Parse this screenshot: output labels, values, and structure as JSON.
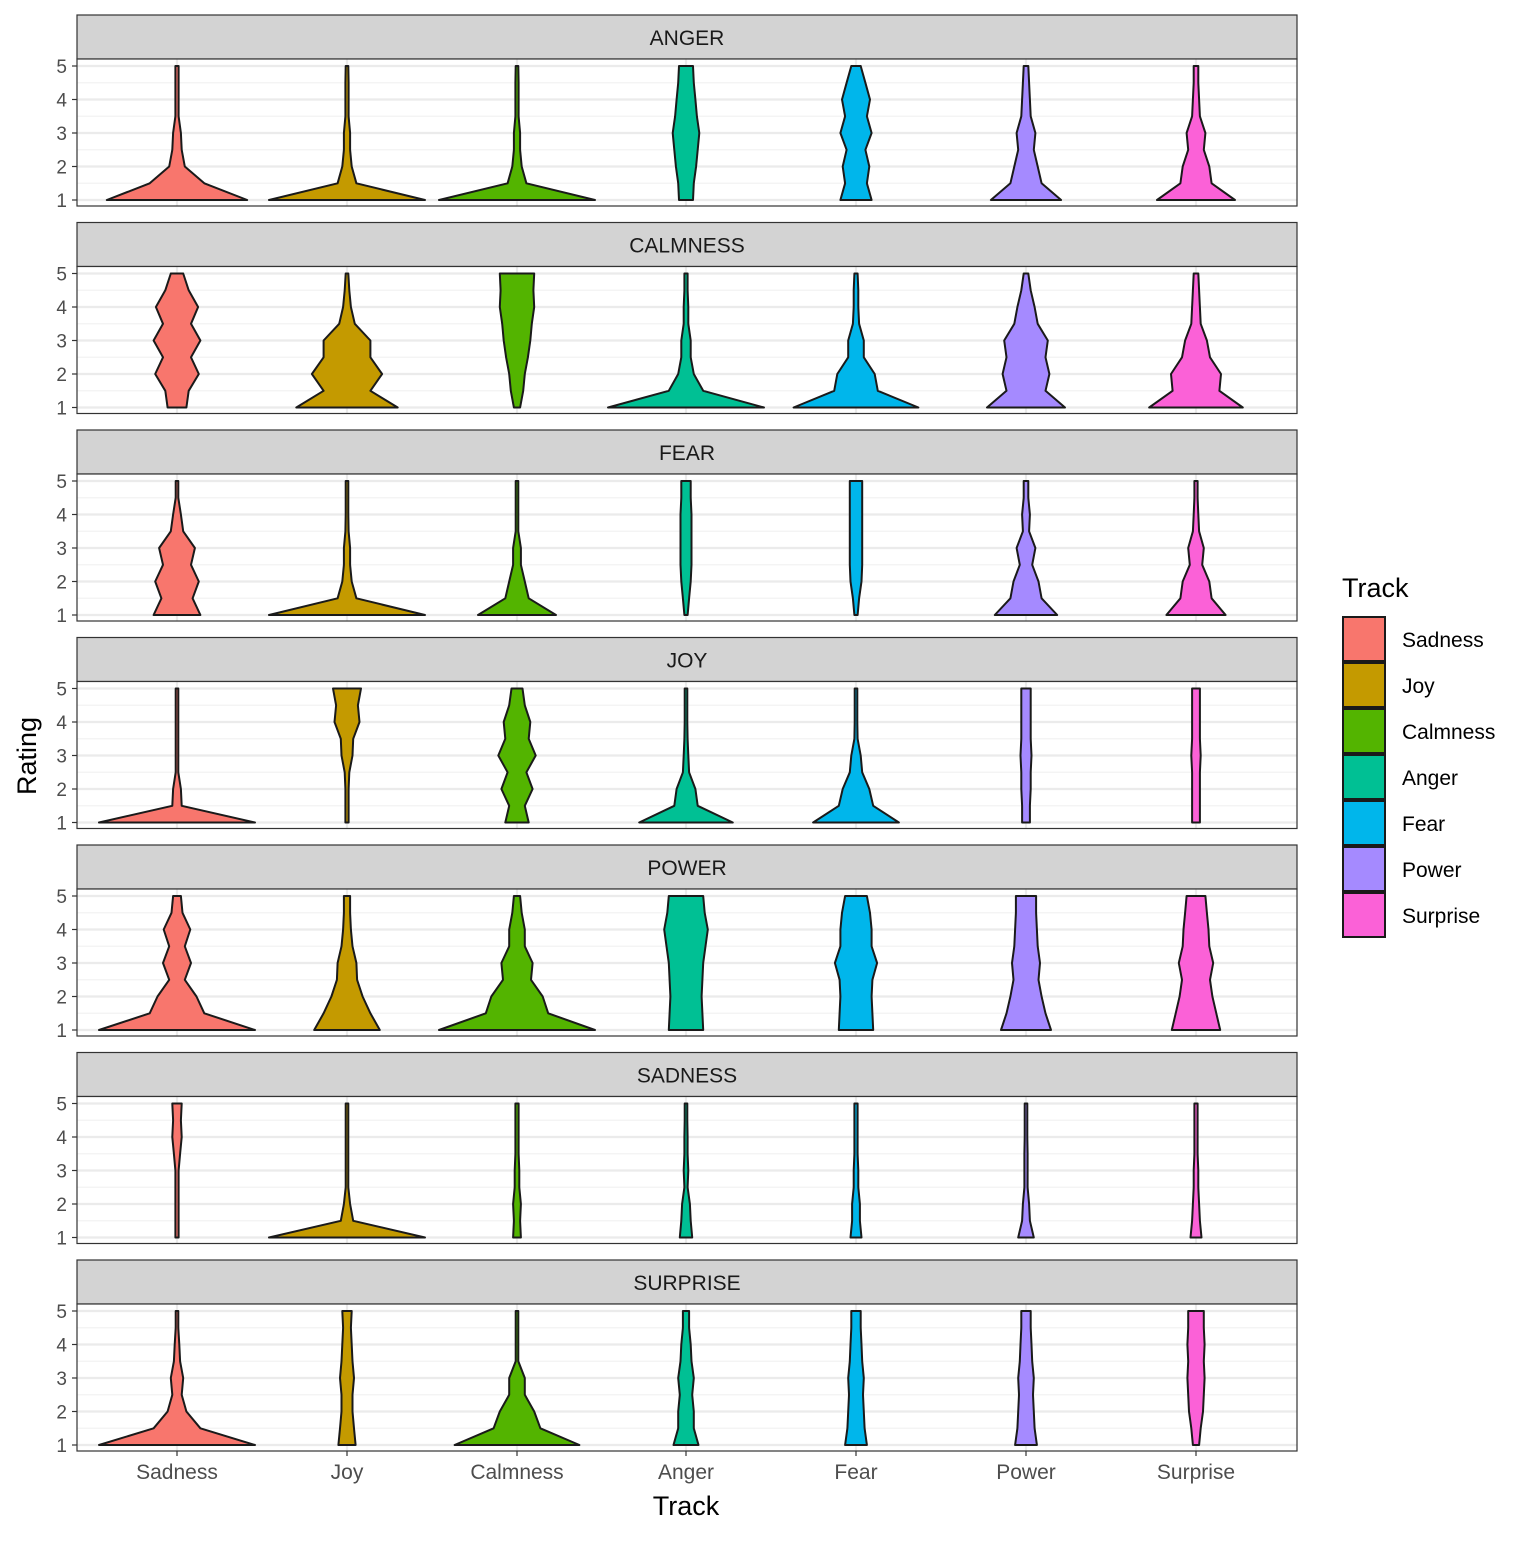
{
  "chart_data": {
    "type": "violin",
    "title": "",
    "xlabel": "Track",
    "ylabel": "Rating",
    "ylim": [
      1,
      5
    ],
    "yticks": [
      "1",
      "2",
      "3",
      "4",
      "5"
    ],
    "categories": [
      "Sadness",
      "Joy",
      "Calmness",
      "Anger",
      "Fear",
      "Power",
      "Surprise"
    ],
    "legend": {
      "title": "Track",
      "position": "right",
      "entries": [
        "Sadness",
        "Joy",
        "Calmness",
        "Anger",
        "Fear",
        "Power",
        "Surprise"
      ]
    },
    "colors": {
      "Sadness": "#F8766D",
      "Joy": "#C49A00",
      "Calmness": "#53B400",
      "Anger": "#00C094",
      "Fear": "#00B6EB",
      "Power": "#A58AFF",
      "Surprise": "#FB61D7"
    },
    "panels": [
      {
        "name": "ANGER",
        "violins": [
          [
            0.9,
            0.35,
            0.1,
            0.06,
            0.05,
            0.02,
            0.02,
            0.02,
            0.02
          ],
          [
            1.0,
            0.12,
            0.06,
            0.04,
            0.04,
            0.02,
            0.02,
            0.02,
            0.0
          ],
          [
            1.0,
            0.12,
            0.06,
            0.04,
            0.04,
            0.02,
            0.02,
            0.02,
            0.0
          ],
          [
            0.09,
            0.1,
            0.13,
            0.15,
            0.17,
            0.14,
            0.12,
            0.1,
            0.09
          ],
          [
            0.2,
            0.14,
            0.17,
            0.12,
            0.2,
            0.14,
            0.18,
            0.12,
            0.06
          ],
          [
            0.45,
            0.2,
            0.15,
            0.1,
            0.12,
            0.06,
            0.05,
            0.04,
            0.03
          ],
          [
            0.5,
            0.2,
            0.17,
            0.1,
            0.12,
            0.05,
            0.04,
            0.03,
            0.03
          ]
        ]
      },
      {
        "name": "CALMNESS",
        "violins": [
          [
            0.12,
            0.15,
            0.28,
            0.18,
            0.3,
            0.18,
            0.27,
            0.15,
            0.08
          ],
          [
            0.65,
            0.3,
            0.45,
            0.3,
            0.3,
            0.1,
            0.05,
            0.03,
            0.0
          ],
          [
            0.04,
            0.08,
            0.1,
            0.14,
            0.17,
            0.19,
            0.22,
            0.21,
            0.22
          ],
          [
            1.0,
            0.22,
            0.1,
            0.06,
            0.06,
            0.03,
            0.03,
            0.02,
            0.02
          ],
          [
            0.8,
            0.28,
            0.24,
            0.1,
            0.1,
            0.04,
            0.03,
            0.03,
            0.02
          ],
          [
            0.5,
            0.25,
            0.3,
            0.25,
            0.28,
            0.15,
            0.11,
            0.06,
            0.03
          ],
          [
            0.6,
            0.3,
            0.32,
            0.18,
            0.14,
            0.06,
            0.05,
            0.04,
            0.03
          ]
        ]
      },
      {
        "name": "FEAR",
        "violins": [
          [
            0.3,
            0.2,
            0.28,
            0.18,
            0.23,
            0.08,
            0.05,
            0.0,
            0.0
          ],
          [
            1.0,
            0.12,
            0.06,
            0.04,
            0.04,
            0.02,
            0.0,
            0.0,
            0.0
          ],
          [
            0.5,
            0.15,
            0.1,
            0.05,
            0.05,
            0.0,
            0.0,
            0.0,
            0.0
          ],
          [
            0.02,
            0.04,
            0.06,
            0.07,
            0.07,
            0.07,
            0.07,
            0.06,
            0.06
          ],
          [
            0.02,
            0.04,
            0.07,
            0.08,
            0.08,
            0.08,
            0.08,
            0.08,
            0.08
          ],
          [
            0.4,
            0.2,
            0.16,
            0.08,
            0.12,
            0.04,
            0.05,
            0.03,
            0.03
          ],
          [
            0.38,
            0.2,
            0.17,
            0.08,
            0.1,
            0.04,
            0.03,
            0.02,
            0.02
          ]
        ]
      },
      {
        "name": "JOY",
        "violins": [
          [
            1.0,
            0.06,
            0.05,
            0.0,
            0.0,
            0.0,
            0.0,
            0.0,
            0.0
          ],
          [
            0.02,
            0.02,
            0.02,
            0.03,
            0.07,
            0.08,
            0.16,
            0.14,
            0.18
          ],
          [
            0.15,
            0.1,
            0.2,
            0.12,
            0.24,
            0.15,
            0.17,
            0.1,
            0.07
          ],
          [
            0.6,
            0.15,
            0.12,
            0.04,
            0.03,
            0.02,
            0.0,
            0.0,
            0.0
          ],
          [
            0.55,
            0.22,
            0.17,
            0.08,
            0.06,
            0.02,
            0.0,
            0.0,
            0.0
          ],
          [
            0.05,
            0.05,
            0.06,
            0.06,
            0.07,
            0.06,
            0.06,
            0.06,
            0.06
          ],
          [
            0.05,
            0.05,
            0.05,
            0.05,
            0.06,
            0.05,
            0.05,
            0.05,
            0.05
          ]
        ]
      },
      {
        "name": "POWER",
        "violins": [
          [
            1.0,
            0.35,
            0.25,
            0.1,
            0.18,
            0.1,
            0.17,
            0.07,
            0.05
          ],
          [
            0.42,
            0.3,
            0.2,
            0.13,
            0.12,
            0.07,
            0.05,
            0.04,
            0.04
          ],
          [
            1.0,
            0.4,
            0.33,
            0.18,
            0.2,
            0.1,
            0.1,
            0.06,
            0.04
          ],
          [
            0.22,
            0.21,
            0.2,
            0.21,
            0.22,
            0.25,
            0.28,
            0.24,
            0.22
          ],
          [
            0.22,
            0.21,
            0.2,
            0.21,
            0.27,
            0.2,
            0.2,
            0.18,
            0.14
          ],
          [
            0.32,
            0.25,
            0.2,
            0.16,
            0.18,
            0.15,
            0.14,
            0.13,
            0.13
          ],
          [
            0.31,
            0.26,
            0.21,
            0.18,
            0.22,
            0.17,
            0.16,
            0.14,
            0.12
          ]
        ]
      },
      {
        "name": "SADNESS",
        "violins": [
          [
            0.02,
            0.02,
            0.02,
            0.02,
            0.02,
            0.04,
            0.06,
            0.05,
            0.06
          ],
          [
            1.0,
            0.08,
            0.04,
            0.0,
            0.0,
            0.0,
            0.0,
            0.0,
            0.0
          ],
          [
            0.05,
            0.04,
            0.05,
            0.03,
            0.03,
            0.02,
            0.02,
            0.02,
            0.02
          ],
          [
            0.08,
            0.06,
            0.05,
            0.02,
            0.03,
            0.02,
            0.02,
            0.0,
            0.0
          ],
          [
            0.07,
            0.05,
            0.05,
            0.03,
            0.03,
            0.02,
            0.02,
            0.02,
            0.02
          ],
          [
            0.1,
            0.05,
            0.04,
            0.02,
            0.02,
            0.02,
            0.0,
            0.0,
            0.0
          ],
          [
            0.07,
            0.05,
            0.04,
            0.03,
            0.03,
            0.02,
            0.02,
            0.02,
            0.02
          ]
        ]
      },
      {
        "name": "SURPRISE",
        "violins": [
          [
            1.0,
            0.3,
            0.12,
            0.06,
            0.08,
            0.04,
            0.03,
            0.0,
            0.0
          ],
          [
            0.11,
            0.09,
            0.07,
            0.07,
            0.09,
            0.07,
            0.06,
            0.05,
            0.06
          ],
          [
            0.8,
            0.3,
            0.22,
            0.1,
            0.1,
            0.0,
            0.0,
            0.0,
            0.0
          ],
          [
            0.16,
            0.1,
            0.1,
            0.08,
            0.1,
            0.07,
            0.06,
            0.04,
            0.04
          ],
          [
            0.14,
            0.11,
            0.1,
            0.09,
            0.1,
            0.08,
            0.07,
            0.06,
            0.06
          ],
          [
            0.14,
            0.11,
            0.1,
            0.09,
            0.1,
            0.08,
            0.07,
            0.06,
            0.06
          ],
          [
            0.04,
            0.06,
            0.09,
            0.1,
            0.11,
            0.1,
            0.11,
            0.1,
            0.1
          ]
        ]
      }
    ]
  }
}
